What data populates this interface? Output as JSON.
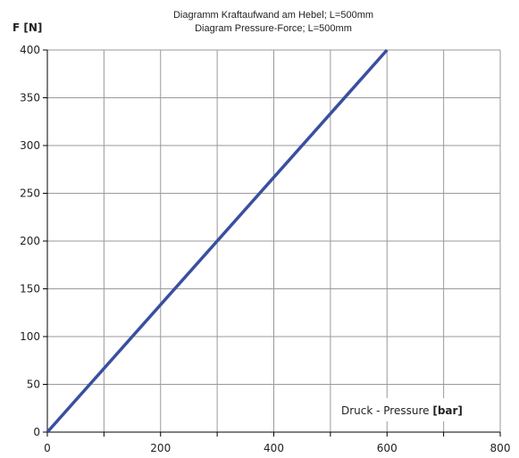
{
  "chart_data": {
    "type": "line",
    "title": "Diagramm Kraftaufwand am Hebel; L=500mm",
    "subtitle": "Diagram Pressure-Force; L=500mm",
    "ylabel": "F [N]",
    "xlabel_prefix": "Druck - Pressure ",
    "xlabel_unit": "[bar]",
    "xlim": [
      0,
      800
    ],
    "ylim": [
      0,
      400
    ],
    "xticks": [
      0,
      200,
      400,
      600,
      800
    ],
    "xtick_labels": [
      "0",
      "200",
      "400",
      "600",
      "800"
    ],
    "xgrid": [
      0,
      100,
      200,
      300,
      400,
      500,
      600,
      700,
      800
    ],
    "yticks": [
      0,
      50,
      100,
      150,
      200,
      250,
      300,
      350,
      400
    ],
    "ytick_labels": [
      "0",
      "50",
      "100",
      "150",
      "200",
      "250",
      "300",
      "350",
      "400"
    ],
    "grid": true,
    "line_color": "#3a4f9e",
    "series": [
      {
        "x": [
          0,
          600
        ],
        "y": [
          0,
          400
        ]
      }
    ]
  }
}
